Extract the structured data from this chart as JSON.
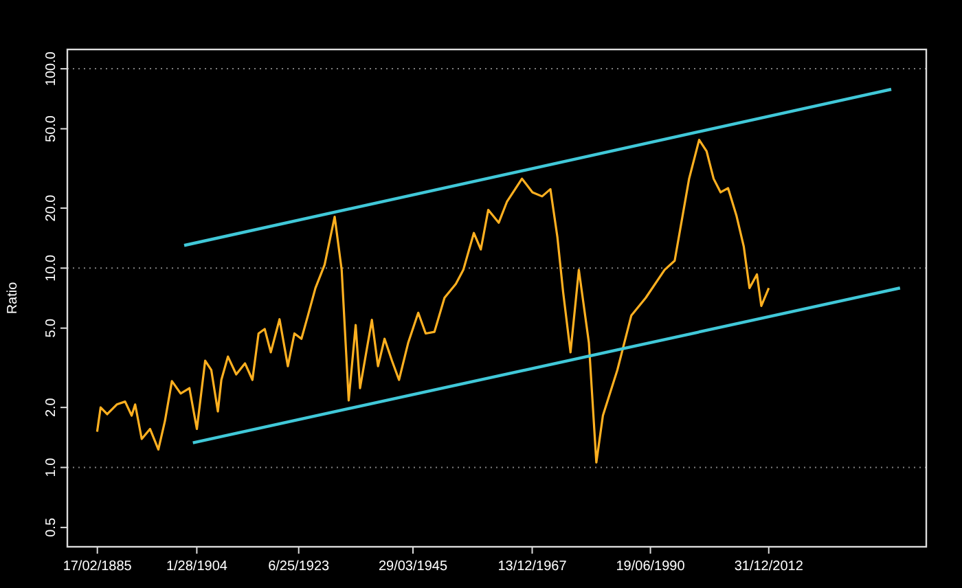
{
  "chart_data": {
    "type": "line",
    "ylabel": "Ratio",
    "log": "y",
    "ylim": [
      0.4,
      125
    ],
    "yticks": [
      {
        "value": 0.5,
        "label": "0.5"
      },
      {
        "value": 1,
        "label": "1.0"
      },
      {
        "value": 2,
        "label": "2.0"
      },
      {
        "value": 5,
        "label": "5.0"
      },
      {
        "value": 10,
        "label": "10.0"
      },
      {
        "value": 20,
        "label": "20.0"
      },
      {
        "value": 50,
        "label": "50.0"
      },
      {
        "value": 100,
        "label": "100.0"
      }
    ],
    "xlim": [
      "1879-06",
      "2043-01"
    ],
    "xticks": [
      {
        "value": "1885-02-17",
        "label": "17/02/1885"
      },
      {
        "value": "1904-01-28",
        "label": "1/28/1904"
      },
      {
        "value": "1923-06-25",
        "label": "6/25/1923"
      },
      {
        "value": "1945-03-29",
        "label": "29/03/1945"
      },
      {
        "value": "1967-12-13",
        "label": "13/12/1967"
      },
      {
        "value": "1990-06-19",
        "label": "19/06/1990"
      },
      {
        "value": "2012-12-31",
        "label": "31/12/2012"
      }
    ],
    "ref_lines": [
      {
        "axis": "y",
        "value": 1,
        "color": "#808080",
        "line_style": "dotted"
      },
      {
        "axis": "y",
        "value": 10,
        "color": "#808080",
        "line_style": "dotted"
      },
      {
        "axis": "y",
        "value": 100,
        "color": "#808080",
        "line_style": "dotted"
      }
    ],
    "series": [
      {
        "color": "#ffb020",
        "x": [
          "1885-02",
          "1885-10",
          "1887-01",
          "1888-11",
          "1890-06",
          "1891-09",
          "1892-05",
          "1893-08",
          "1895-03",
          "1896-10",
          "1898-01",
          "1899-05",
          "1901-01",
          "1902-09",
          "1904-02",
          "1905-09",
          "1906-11",
          "1908-02",
          "1908-10",
          "1910-01",
          "1911-08",
          "1913-04",
          "1914-09",
          "1915-11",
          "1917-01",
          "1918-03",
          "1919-11",
          "1921-06",
          "1922-09",
          "1924-01",
          "1925-04",
          "1926-09",
          "1928-06",
          "1930-05",
          "1931-09",
          "1933-01",
          "1934-05",
          "1935-03",
          "1937-06",
          "1938-08",
          "1939-11",
          "1941-04",
          "1942-08",
          "1944-05",
          "1946-04",
          "1947-09",
          "1949-05",
          "1951-04",
          "1953-06",
          "1954-11",
          "1956-11",
          "1958-03",
          "1959-08",
          "1961-08",
          "1963-03",
          "1966-01",
          "1968-01",
          "1969-11",
          "1971-06",
          "1972-10",
          "1973-11",
          "1975-04",
          "1976-11",
          "1978-10",
          "1980-03",
          "1981-06",
          "1984-03",
          "1986-11",
          "1989-08",
          "1993-03",
          "1995-02",
          "1997-11",
          "1999-10",
          "2001-03",
          "2002-07",
          "2003-11",
          "2005-04",
          "2006-11",
          "2008-04",
          "2009-05",
          "2010-10",
          "2011-08",
          "2013-01"
        ],
        "values": [
          1.51,
          2.0,
          1.85,
          2.07,
          2.14,
          1.82,
          2.07,
          1.39,
          1.56,
          1.23,
          1.71,
          2.71,
          2.35,
          2.5,
          1.56,
          3.43,
          3.08,
          1.91,
          2.75,
          3.6,
          2.93,
          3.33,
          2.75,
          4.7,
          4.95,
          3.78,
          5.54,
          3.22,
          4.7,
          4.42,
          5.79,
          7.94,
          10.4,
          18.1,
          9.8,
          2.17,
          5.18,
          2.5,
          5.5,
          3.22,
          4.42,
          3.43,
          2.75,
          4.22,
          5.97,
          4.7,
          4.79,
          7.1,
          8.33,
          9.8,
          15.0,
          12.4,
          19.6,
          16.9,
          21.6,
          28.1,
          24.0,
          22.9,
          24.9,
          14.3,
          7.6,
          3.78,
          9.8,
          4.22,
          1.06,
          1.82,
          3.08,
          5.79,
          7.1,
          9.8,
          10.9,
          28.1,
          44.0,
          38.6,
          28.1,
          24.0,
          25.2,
          18.4,
          12.8,
          7.94,
          9.3,
          6.46,
          7.94
        ]
      },
      {
        "color": "#40c8d8",
        "x": [
          "1901-09",
          "2036-05"
        ],
        "values": [
          13.0,
          78.9
        ]
      },
      {
        "color": "#40c8d8",
        "x": [
          "1903-05",
          "2038-01"
        ],
        "values": [
          1.33,
          7.95
        ]
      }
    ]
  }
}
